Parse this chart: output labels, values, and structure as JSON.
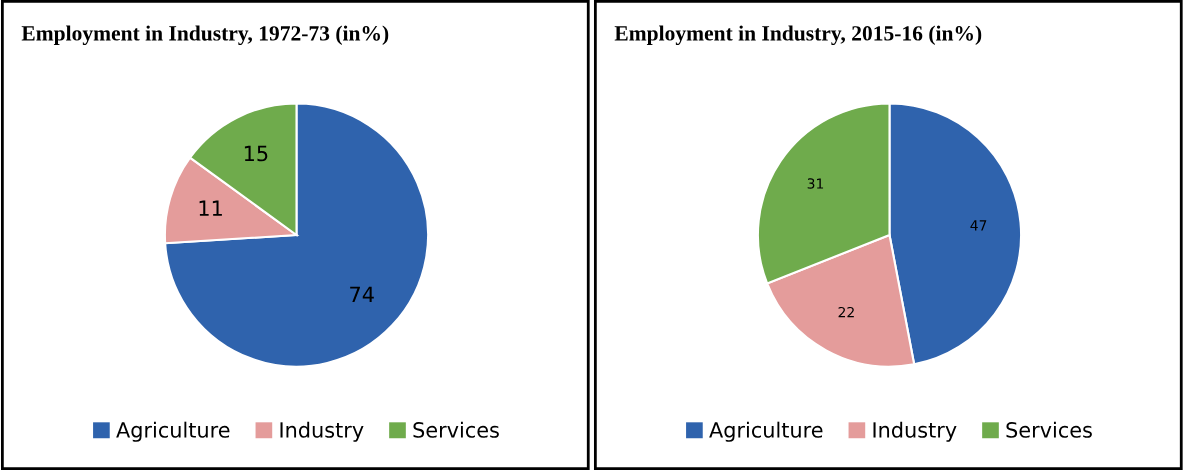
{
  "chart_data": [
    {
      "type": "pie",
      "title": "Employment in Industry, 1972-73 (in%)",
      "categories": [
        "Agriculture",
        "Industry",
        "Services"
      ],
      "values": [
        74,
        11,
        15
      ],
      "colors": [
        "#2f63ad",
        "#e49c9b",
        "#6fab4c"
      ],
      "data_labels": true,
      "legend": "bottom"
    },
    {
      "type": "pie",
      "title": "Employment in Industry, 2015-16 (in%)",
      "categories": [
        "Agriculture",
        "Industry",
        "Services"
      ],
      "values": [
        47,
        22,
        31
      ],
      "colors": [
        "#2f63ad",
        "#e49c9b",
        "#6fab4c"
      ],
      "data_labels": true,
      "legend": "bottom"
    }
  ]
}
